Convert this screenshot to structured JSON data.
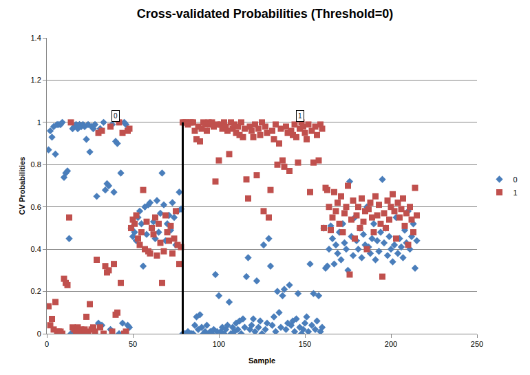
{
  "chart_data": {
    "type": "scatter",
    "title": "Cross-validated Probabilities (Threshold=0)",
    "x_label": "Sample",
    "y_label": "CV Probabilities",
    "x": [
      1,
      2,
      3,
      4,
      5,
      6,
      7,
      8,
      9,
      10,
      11,
      12,
      13,
      14,
      15,
      16,
      17,
      18,
      19,
      20,
      21,
      22,
      23,
      24,
      25,
      26,
      27,
      28,
      29,
      30,
      31,
      32,
      33,
      34,
      35,
      36,
      37,
      38,
      39,
      40,
      41,
      42,
      43,
      44,
      45,
      46,
      47,
      48,
      49,
      50,
      51,
      52,
      53,
      54,
      55,
      56,
      57,
      58,
      59,
      60,
      61,
      62,
      63,
      64,
      65,
      66,
      67,
      68,
      69,
      70,
      71,
      72,
      73,
      74,
      75,
      76,
      77,
      78,
      79,
      80,
      81,
      82,
      83,
      84,
      85,
      86,
      87,
      88,
      89,
      90,
      91,
      92,
      93,
      94,
      95,
      96,
      97,
      98,
      99,
      100,
      101,
      102,
      103,
      104,
      105,
      106,
      107,
      108,
      109,
      110,
      111,
      112,
      113,
      114,
      115,
      116,
      117,
      118,
      119,
      120,
      121,
      122,
      123,
      124,
      125,
      126,
      127,
      128,
      129,
      130,
      131,
      132,
      133,
      134,
      135,
      136,
      137,
      138,
      139,
      140,
      141,
      142,
      143,
      144,
      145,
      146,
      147,
      148,
      149,
      150,
      151,
      152,
      153,
      154,
      155,
      156,
      157,
      158,
      159,
      160,
      161,
      162,
      163,
      164,
      165,
      166,
      167,
      168,
      169,
      170,
      171,
      172,
      173,
      174,
      175,
      176,
      177,
      178,
      179,
      180,
      181,
      182,
      183,
      184,
      185,
      186,
      187,
      188,
      189,
      190,
      191,
      192,
      193,
      194,
      195,
      196,
      197,
      198,
      199,
      200,
      201,
      202,
      203,
      204,
      205,
      206,
      207,
      208,
      209,
      210,
      211,
      212,
      213,
      214,
      215
    ],
    "series": [
      {
        "name": "0",
        "color": "#4a7ebb",
        "marker": "diamond",
        "values": [
          0.87,
          0.96,
          0.93,
          0.98,
          0.85,
          0.99,
          0.99,
          0.99,
          1.0,
          0.74,
          0.76,
          0.77,
          0.45,
          0.0,
          0.97,
          0.98,
          0.99,
          0.97,
          0.99,
          0.98,
          0.99,
          0.98,
          0.92,
          0.99,
          0.86,
          0.98,
          0.97,
          0.99,
          0.65,
          0.05,
          0.97,
          0.04,
          1.0,
          0.68,
          0.71,
          0.7,
          0.02,
          0.99,
          0.67,
          0.91,
          0.9,
          0.0,
          0.76,
          0.05,
          1.0,
          0.99,
          0.04,
          0.03,
          0.5,
          0.46,
          0.48,
          0.44,
          0.55,
          0.58,
          0.52,
          0.32,
          0.6,
          0.47,
          0.61,
          0.62,
          0.5,
          0.53,
          0.45,
          0.63,
          0.48,
          0.57,
          0.76,
          0.61,
          0.44,
          0.52,
          0.56,
          0.49,
          0.62,
          0.55,
          0.42,
          0.58,
          0.67,
          0.59,
          0.0,
          0.0,
          0.0,
          0.01,
          0.0,
          0.0,
          0.0,
          0.04,
          0.08,
          0.02,
          0.09,
          0.03,
          0.0,
          0.01,
          0.04,
          0.0,
          0.01,
          0.0,
          0.02,
          0.28,
          0.01,
          0.18,
          0.01,
          0.03,
          0.0,
          0.02,
          0.04,
          0.15,
          0.0,
          0.03,
          0.01,
          0.05,
          0.02,
          0.06,
          0.0,
          0.07,
          0.03,
          0.27,
          0.36,
          0.02,
          0.04,
          0.07,
          0.01,
          0.25,
          0.03,
          0.06,
          0.0,
          0.42,
          0.02,
          0.05,
          0.45,
          0.32,
          0.04,
          0.08,
          0.01,
          0.2,
          0.1,
          0.03,
          0.18,
          0.21,
          0.02,
          0.05,
          0.23,
          0.04,
          0.06,
          0.01,
          0.07,
          0.19,
          0.03,
          0.0,
          0.02,
          0.05,
          0.08,
          0.01,
          0.33,
          0.04,
          0.19,
          0.02,
          0.06,
          0.18,
          0.01,
          0.03,
          0.5,
          0.31,
          0.32,
          0.4,
          0.51,
          0.45,
          0.33,
          0.42,
          0.38,
          0.48,
          0.35,
          0.52,
          0.43,
          0.4,
          0.3,
          0.72,
          0.46,
          0.37,
          0.55,
          0.44,
          0.4,
          0.5,
          0.36,
          0.47,
          0.42,
          0.6,
          0.41,
          0.38,
          0.45,
          0.52,
          0.35,
          0.44,
          0.39,
          0.48,
          0.73,
          0.43,
          0.5,
          0.37,
          0.46,
          0.4,
          0.34,
          0.42,
          0.55,
          0.38,
          0.45,
          0.41,
          0.36,
          0.49,
          0.43,
          0.58,
          0.4,
          0.46,
          0.52,
          0.31,
          0.44
        ]
      },
      {
        "name": "1",
        "color": "#c0504d",
        "marker": "square",
        "values": [
          0.13,
          0.04,
          0.07,
          0.02,
          0.15,
          0.01,
          0.01,
          0.01,
          0.0,
          0.26,
          0.24,
          0.23,
          0.55,
          1.0,
          0.03,
          0.02,
          0.01,
          0.03,
          0.01,
          0.02,
          0.01,
          0.02,
          0.08,
          0.01,
          0.14,
          0.02,
          0.03,
          0.01,
          0.35,
          0.95,
          0.03,
          0.96,
          0.0,
          0.32,
          0.29,
          0.3,
          0.98,
          0.01,
          0.33,
          0.09,
          0.1,
          1.0,
          0.24,
          0.95,
          0.0,
          0.01,
          0.96,
          0.97,
          0.5,
          0.54,
          0.52,
          0.56,
          0.45,
          0.42,
          0.48,
          0.68,
          0.4,
          0.53,
          0.39,
          0.38,
          0.5,
          0.47,
          0.55,
          0.37,
          0.52,
          0.43,
          0.24,
          0.39,
          0.56,
          0.48,
          0.44,
          0.51,
          0.38,
          0.45,
          0.58,
          0.42,
          0.33,
          0.41,
          1.0,
          1.0,
          1.0,
          0.99,
          1.0,
          1.0,
          1.0,
          0.96,
          0.92,
          0.98,
          0.91,
          0.97,
          1.0,
          0.99,
          0.96,
          1.0,
          0.99,
          1.0,
          0.98,
          0.72,
          0.99,
          0.82,
          0.99,
          0.97,
          1.0,
          0.98,
          0.96,
          0.85,
          1.0,
          0.97,
          0.99,
          0.95,
          0.98,
          0.94,
          1.0,
          0.93,
          0.97,
          0.73,
          0.64,
          0.98,
          0.96,
          0.93,
          0.99,
          0.75,
          0.97,
          0.94,
          1.0,
          0.58,
          0.98,
          0.95,
          0.55,
          0.68,
          0.96,
          0.92,
          0.99,
          0.8,
          0.9,
          0.97,
          0.82,
          0.79,
          0.98,
          0.95,
          0.77,
          0.96,
          0.94,
          0.99,
          0.93,
          0.81,
          0.97,
          1.0,
          0.98,
          0.95,
          0.92,
          0.99,
          0.67,
          0.96,
          0.81,
          0.98,
          0.94,
          0.82,
          0.99,
          0.97,
          0.5,
          0.69,
          0.68,
          0.6,
          0.49,
          0.55,
          0.67,
          0.58,
          0.62,
          0.52,
          0.65,
          0.48,
          0.57,
          0.6,
          0.7,
          0.28,
          0.54,
          0.63,
          0.45,
          0.56,
          0.6,
          0.5,
          0.64,
          0.53,
          0.58,
          0.4,
          0.59,
          0.62,
          0.55,
          0.48,
          0.65,
          0.56,
          0.61,
          0.52,
          0.27,
          0.57,
          0.5,
          0.63,
          0.54,
          0.6,
          0.66,
          0.58,
          0.45,
          0.62,
          0.55,
          0.59,
          0.64,
          0.51,
          0.57,
          0.42,
          0.6,
          0.54,
          0.48,
          0.69,
          0.56
        ]
      }
    ],
    "annotations": [
      {
        "text": "0",
        "x": 40,
        "y": 1.03
      },
      {
        "text": "1",
        "x": 147,
        "y": 1.03
      }
    ],
    "divider": {
      "x": 79,
      "y": [
        0,
        1
      ]
    },
    "xlim": [
      0,
      250
    ],
    "xticks": [
      0,
      50,
      100,
      150,
      200,
      250
    ],
    "ylim": [
      0,
      1.4
    ],
    "yticks": [
      0,
      0.2,
      0.4,
      0.6,
      0.8,
      1,
      1.2,
      1.4
    ],
    "grid": true,
    "legend": "right"
  }
}
